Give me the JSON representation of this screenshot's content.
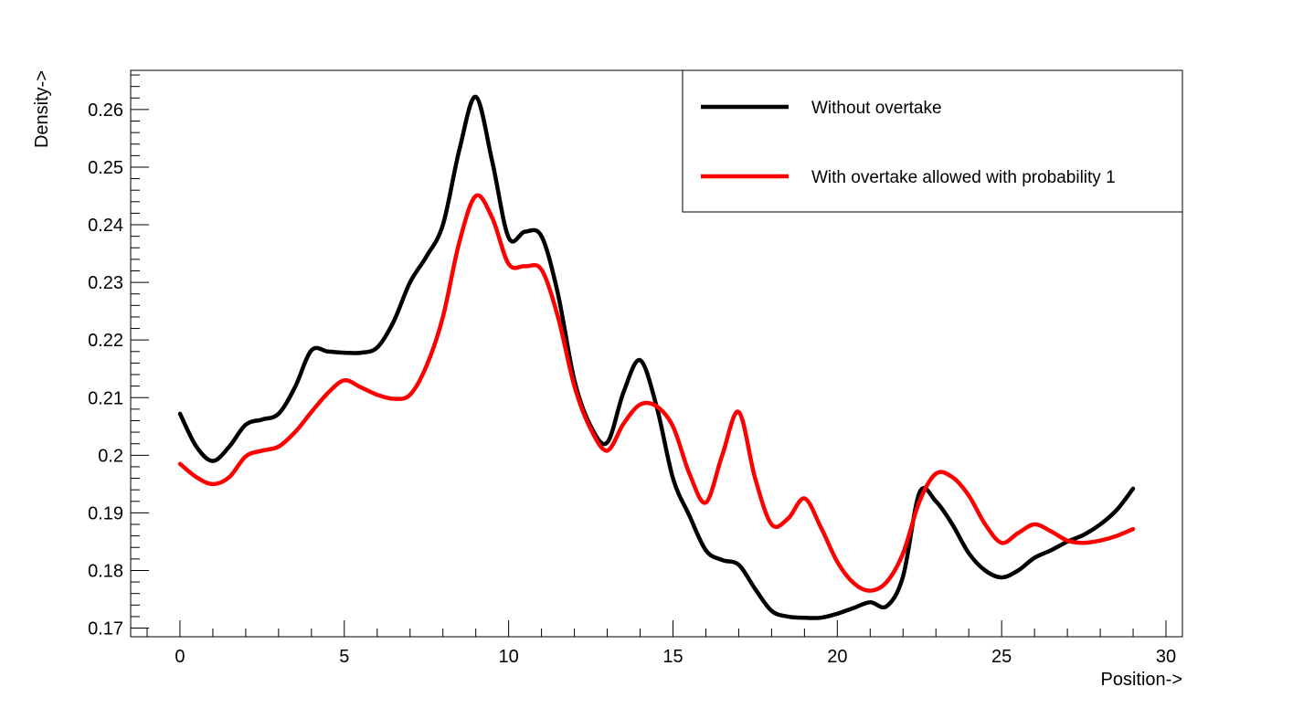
{
  "chart_data": {
    "type": "line",
    "title": "",
    "xlabel": "Position->",
    "ylabel": "Density->",
    "xlim": [
      -1.5,
      30.5
    ],
    "ylim": [
      0.1685,
      0.2668
    ],
    "x_ticks": [
      0,
      5,
      10,
      15,
      20,
      25,
      30
    ],
    "y_ticks": [
      0.17,
      0.18,
      0.19,
      0.2,
      0.21,
      0.22,
      0.23,
      0.24,
      0.25,
      0.26
    ],
    "grid": false,
    "legend_position": "top-right",
    "x": [
      0,
      0.5,
      1,
      1.5,
      2,
      2.5,
      3,
      3.5,
      4,
      4.5,
      5,
      5.5,
      6,
      6.5,
      7,
      7.5,
      8,
      8.5,
      9,
      9.5,
      10,
      10.5,
      11,
      11.5,
      12,
      12.5,
      13,
      13.5,
      14,
      14.5,
      15,
      15.5,
      16,
      16.5,
      17,
      17.5,
      18,
      18.5,
      19,
      19.5,
      20,
      20.5,
      21,
      21.5,
      22,
      22.5,
      23,
      23.5,
      24,
      24.5,
      25,
      25.5,
      26,
      26.5,
      27,
      27.5,
      28,
      28.5,
      29
    ],
    "series": [
      {
        "name": "Without overtake",
        "color": "#000000",
        "values": [
          0.2072,
          0.2015,
          0.199,
          0.2015,
          0.2053,
          0.2062,
          0.2072,
          0.2118,
          0.2182,
          0.218,
          0.2178,
          0.2178,
          0.2187,
          0.2232,
          0.23,
          0.2345,
          0.24,
          0.253,
          0.2622,
          0.251,
          0.2378,
          0.2388,
          0.238,
          0.228,
          0.213,
          0.205,
          0.2022,
          0.211,
          0.2165,
          0.2085,
          0.196,
          0.1895,
          0.1835,
          0.1818,
          0.181,
          0.1768,
          0.173,
          0.172,
          0.1718,
          0.1718,
          0.1725,
          0.1735,
          0.1745,
          0.1738,
          0.179,
          0.1935,
          0.192,
          0.188,
          0.183,
          0.18,
          0.1788,
          0.18,
          0.1822,
          0.1835,
          0.185,
          0.1862,
          0.188,
          0.1905,
          0.1942
        ]
      },
      {
        "name": "With overtake allowed with probability 1",
        "color": "#ff0000",
        "values": [
          0.1985,
          0.1962,
          0.195,
          0.1962,
          0.1998,
          0.2008,
          0.2015,
          0.204,
          0.2075,
          0.2108,
          0.213,
          0.2118,
          0.2105,
          0.2098,
          0.2105,
          0.2155,
          0.224,
          0.237,
          0.245,
          0.2412,
          0.2332,
          0.2328,
          0.2322,
          0.224,
          0.212,
          0.2045,
          0.2008,
          0.2055,
          0.2088,
          0.2085,
          0.205,
          0.1968,
          0.1918,
          0.2,
          0.2075,
          0.196,
          0.188,
          0.189,
          0.1925,
          0.1875,
          0.1815,
          0.1778,
          0.1765,
          0.178,
          0.183,
          0.192,
          0.1968,
          0.1962,
          0.193,
          0.188,
          0.1848,
          0.1865,
          0.188,
          0.1868,
          0.1852,
          0.1848,
          0.1852,
          0.186,
          0.1872
        ]
      }
    ]
  }
}
